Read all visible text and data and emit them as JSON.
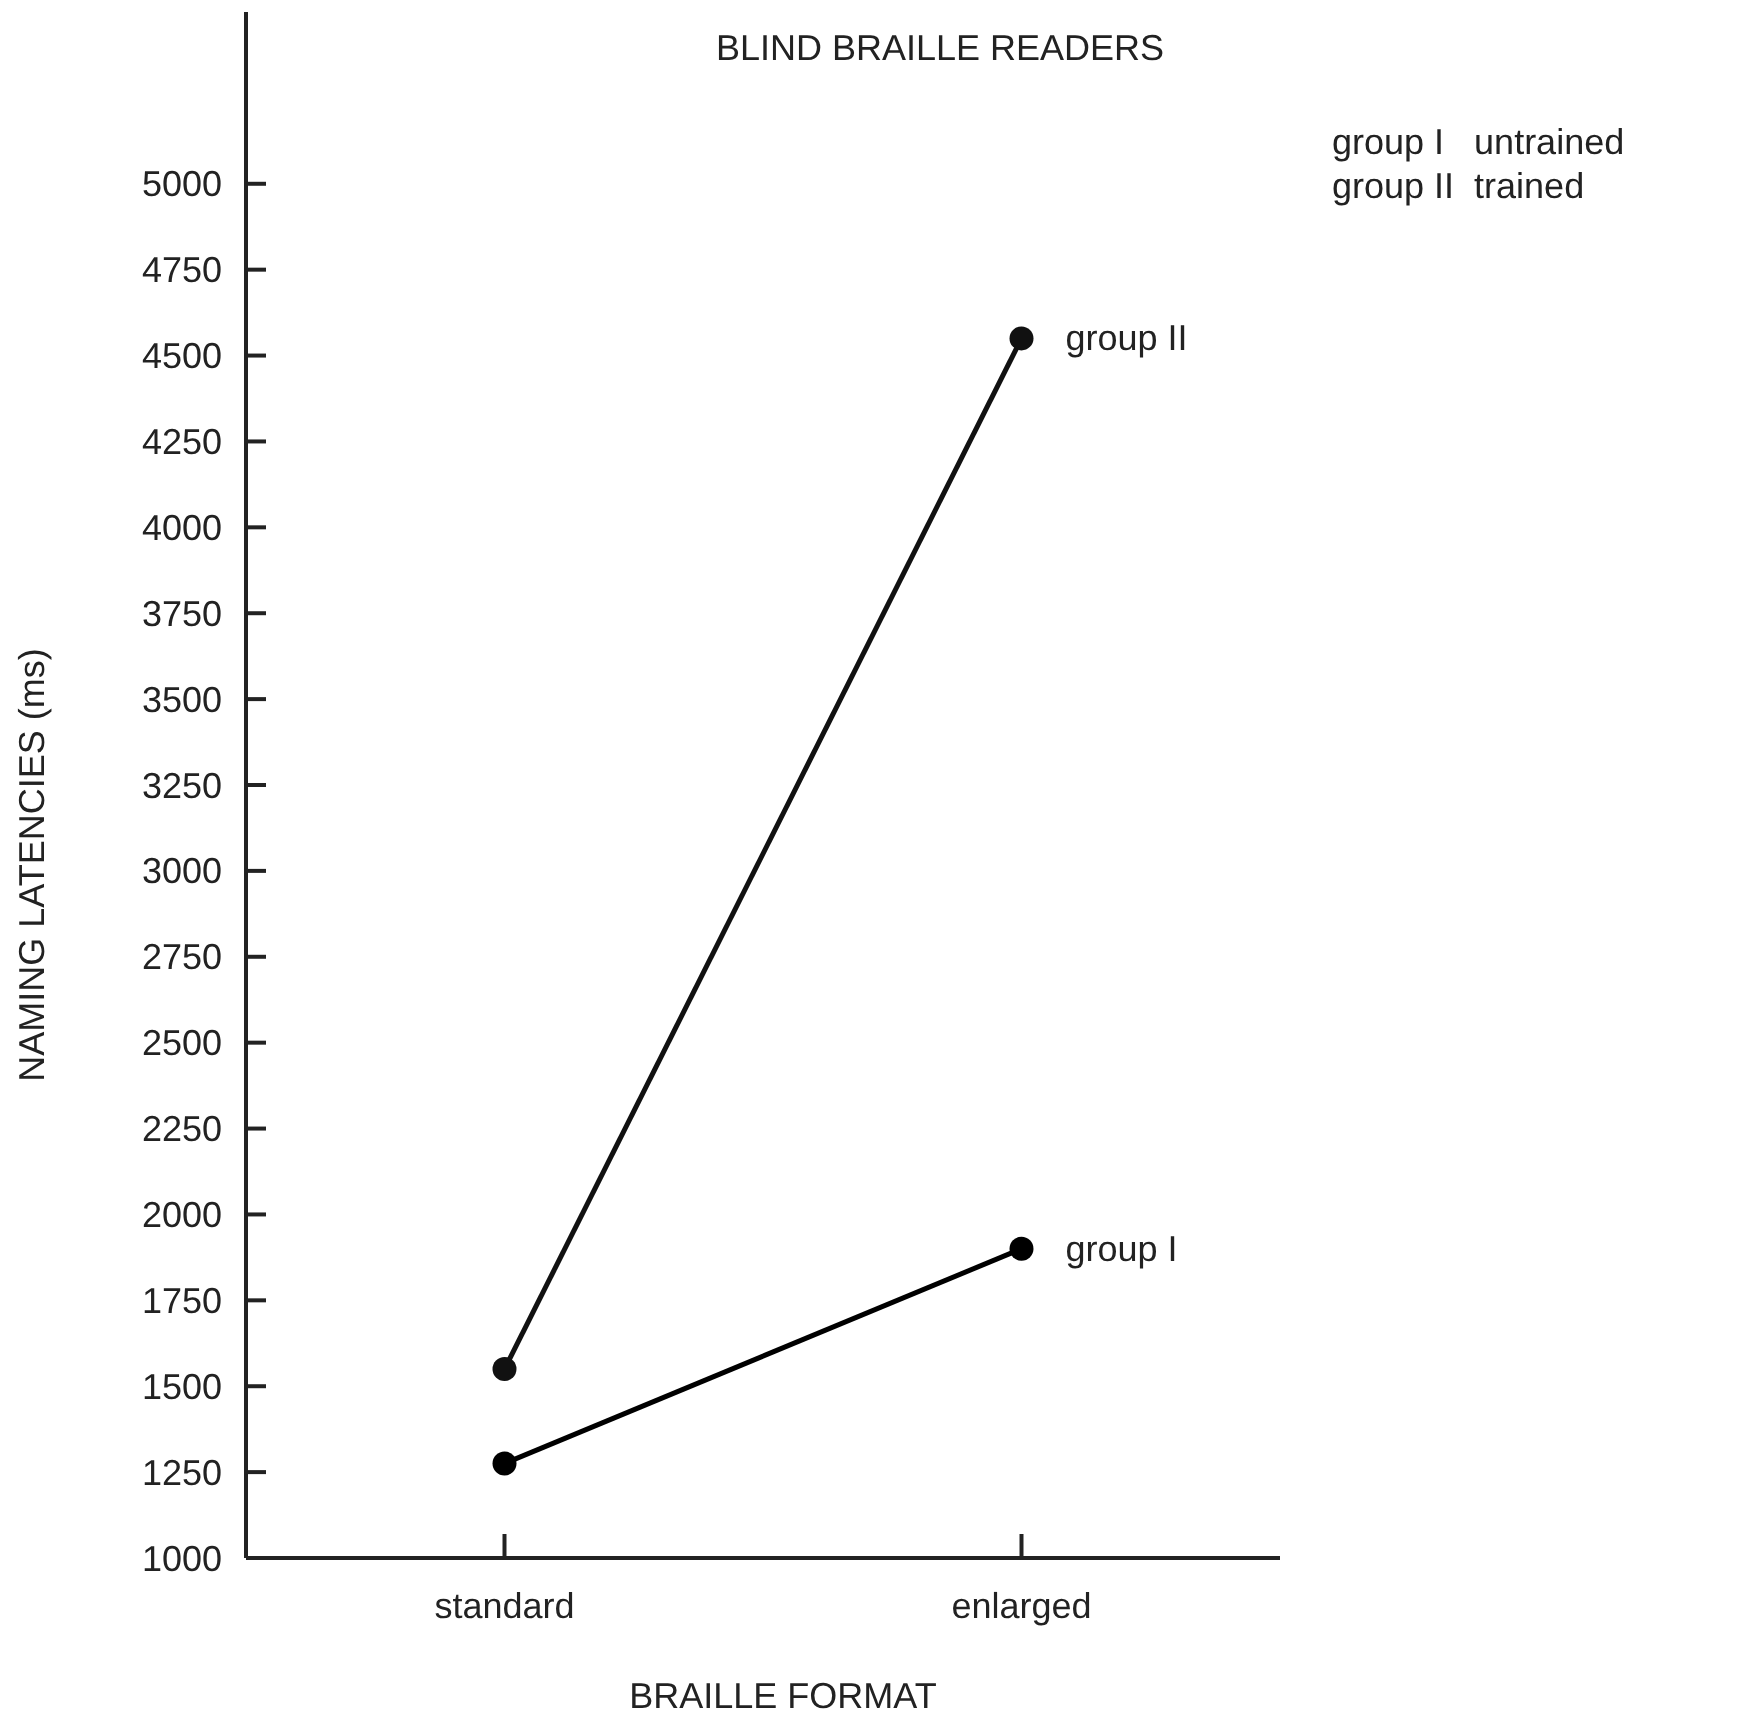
{
  "chart_data": {
    "type": "line",
    "title": "BLIND BRAILLE READERS",
    "xlabel": "BRAILLE FORMAT",
    "ylabel": "NAMING LATENCIES (ms)",
    "categories": [
      "standard",
      "enlarged"
    ],
    "series": [
      {
        "name": "group I",
        "color": "#000000",
        "values": [
          1275,
          1900
        ]
      },
      {
        "name": "group II",
        "color": "#111111",
        "values": [
          1550,
          4550
        ]
      }
    ],
    "ylim": [
      1000,
      5500
    ],
    "yticks": [
      1000,
      1250,
      1500,
      1750,
      2000,
      2250,
      2500,
      2750,
      3000,
      3250,
      3500,
      3750,
      4000,
      4250,
      4500,
      4750,
      5000
    ],
    "marker": "circle",
    "line_style": "solid",
    "grid": false,
    "annotations": [
      "group I   untrained",
      "group II  trained"
    ]
  }
}
